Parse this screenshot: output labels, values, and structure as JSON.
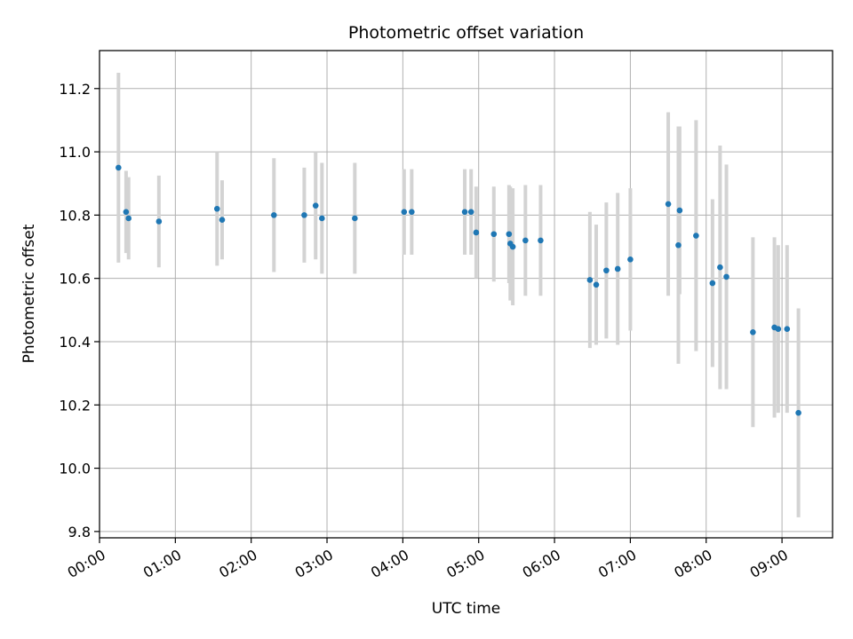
{
  "chart_data": {
    "type": "scatter",
    "title": "Photometric offset variation",
    "xlabel": "UTC time",
    "ylabel": "Photometric offset",
    "xlim": [
      "00:00",
      "09:40"
    ],
    "ylim": [
      9.78,
      11.32
    ],
    "x_ticks": [
      "00:00",
      "01:00",
      "02:00",
      "03:00",
      "04:00",
      "05:00",
      "06:00",
      "07:00",
      "08:00",
      "09:00"
    ],
    "y_ticks": [
      9.8,
      10.0,
      10.2,
      10.4,
      10.6,
      10.8,
      11.0,
      11.2
    ],
    "grid": true,
    "colors": {
      "points": "#1f77b4",
      "error_bars": "#d3d3d3",
      "grid": "#b0b0b0"
    },
    "series": [
      {
        "points": [
          {
            "x": "00:15",
            "y": 10.95,
            "err": 0.3
          },
          {
            "x": "00:21",
            "y": 10.81,
            "err": 0.13
          },
          {
            "x": "00:23",
            "y": 10.79,
            "err": 0.13
          },
          {
            "x": "00:47",
            "y": 10.78,
            "err": 0.145
          },
          {
            "x": "01:33",
            "y": 10.82,
            "err": 0.18
          },
          {
            "x": "01:37",
            "y": 10.785,
            "err": 0.125
          },
          {
            "x": "02:18",
            "y": 10.8,
            "err": 0.18
          },
          {
            "x": "02:42",
            "y": 10.8,
            "err": 0.15
          },
          {
            "x": "02:51",
            "y": 10.83,
            "err": 0.17
          },
          {
            "x": "02:56",
            "y": 10.79,
            "err": 0.175
          },
          {
            "x": "03:22",
            "y": 10.79,
            "err": 0.175
          },
          {
            "x": "04:01",
            "y": 10.81,
            "err": 0.135
          },
          {
            "x": "04:07",
            "y": 10.81,
            "err": 0.135
          },
          {
            "x": "04:49",
            "y": 10.81,
            "err": 0.135
          },
          {
            "x": "04:54",
            "y": 10.81,
            "err": 0.135
          },
          {
            "x": "04:58",
            "y": 10.745,
            "err": 0.145
          },
          {
            "x": "05:12",
            "y": 10.74,
            "err": 0.15
          },
          {
            "x": "05:24",
            "y": 10.74,
            "err": 0.155
          },
          {
            "x": "05:25",
            "y": 10.71,
            "err": 0.18
          },
          {
            "x": "05:27",
            "y": 10.7,
            "err": 0.185
          },
          {
            "x": "05:37",
            "y": 10.72,
            "err": 0.175
          },
          {
            "x": "05:49",
            "y": 10.72,
            "err": 0.175
          },
          {
            "x": "06:28",
            "y": 10.595,
            "err": 0.215
          },
          {
            "x": "06:33",
            "y": 10.58,
            "err": 0.19
          },
          {
            "x": "06:41",
            "y": 10.625,
            "err": 0.215
          },
          {
            "x": "06:50",
            "y": 10.63,
            "err": 0.24
          },
          {
            "x": "07:00",
            "y": 10.66,
            "err": 0.225
          },
          {
            "x": "07:30",
            "y": 10.835,
            "err": 0.29
          },
          {
            "x": "07:38",
            "y": 10.705,
            "err": 0.375
          },
          {
            "x": "07:39",
            "y": 10.815,
            "err": 0.265
          },
          {
            "x": "07:52",
            "y": 10.735,
            "err": 0.365
          },
          {
            "x": "08:05",
            "y": 10.585,
            "err": 0.265
          },
          {
            "x": "08:11",
            "y": 10.635,
            "err": 0.385
          },
          {
            "x": "08:16",
            "y": 10.605,
            "err": 0.355
          },
          {
            "x": "08:37",
            "y": 10.43,
            "err": 0.3
          },
          {
            "x": "08:54",
            "y": 10.445,
            "err": 0.285
          },
          {
            "x": "08:57",
            "y": 10.44,
            "err": 0.265
          },
          {
            "x": "09:04",
            "y": 10.44,
            "err": 0.265
          },
          {
            "x": "09:13",
            "y": 10.175,
            "err": 0.33
          }
        ]
      }
    ]
  }
}
